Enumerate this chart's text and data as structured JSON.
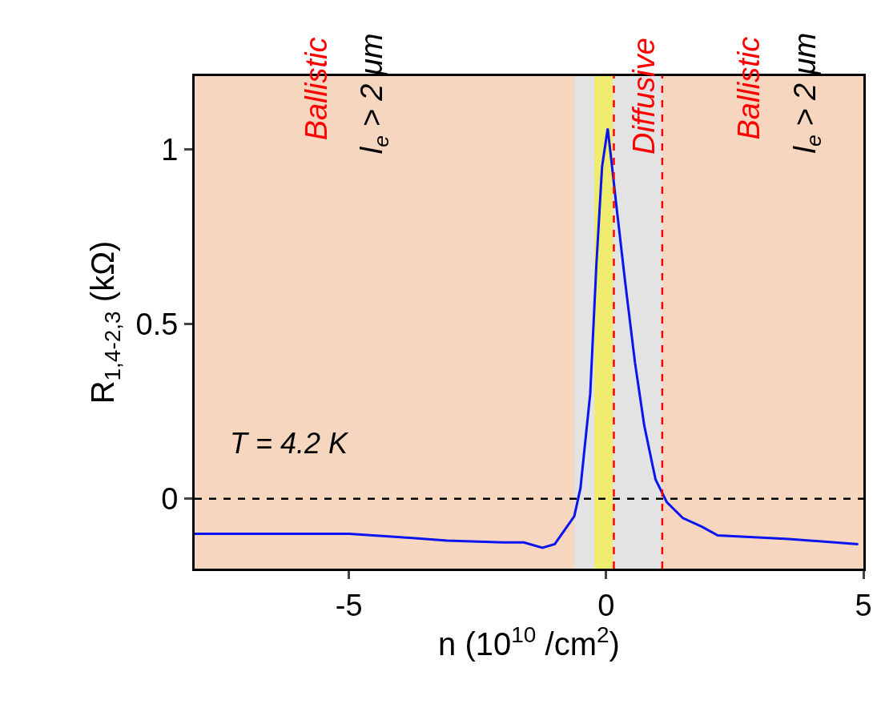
{
  "chart_data": {
    "type": "line",
    "xlabel": "n (10$^{10}$ /cm$^{2}$)",
    "ylabel": "R$_{1,4-2,3}$ (kΩ)",
    "xlim": [
      -8,
      5
    ],
    "ylim": [
      -0.2,
      1.21
    ],
    "xticks": [
      -5,
      0,
      5
    ],
    "yticks": [
      0,
      0.5,
      1
    ],
    "series": [
      {
        "color": "#0a14f0",
        "x": [
          -8,
          -6.5,
          -5,
          -4,
          -3.09,
          -2,
          -1.6,
          -1.24,
          -1.0,
          -0.62,
          -0.5,
          -0.31,
          -0.19,
          -0.08,
          0.03,
          0.1,
          0.19,
          0.37,
          0.56,
          0.74,
          0.96,
          1.18,
          1.49,
          1.86,
          2.17,
          3.55,
          4.9
        ],
        "values": [
          -0.1,
          -0.1,
          -0.1,
          -0.11,
          -0.12,
          -0.125,
          -0.125,
          -0.14,
          -0.13,
          -0.05,
          0.03,
          0.3,
          0.67,
          0.95,
          1.06,
          0.97,
          0.85,
          0.62,
          0.39,
          0.21,
          0.055,
          -0.01,
          -0.055,
          -0.08,
          -0.105,
          -0.115,
          -0.13
        ]
      }
    ],
    "bands": [
      {
        "axis": "x",
        "from": -8,
        "to": -0.62,
        "color": "#f6d6be"
      },
      {
        "axis": "x",
        "from": -0.62,
        "to": 1.09,
        "color": "#e3e3e3"
      },
      {
        "axis": "x",
        "from": -0.23,
        "to": 0.13,
        "color": "#f0ec70"
      },
      {
        "axis": "x",
        "from": 1.09,
        "to": 5,
        "color": "#f6d6be"
      }
    ],
    "ref_lines": [
      {
        "axis": "y",
        "value": 0,
        "color": "#000000",
        "line_style": "dashed"
      },
      {
        "axis": "x",
        "value": 0.15,
        "color": "#ff0000",
        "line_style": "dashed"
      },
      {
        "axis": "x",
        "value": 1.09,
        "color": "#ff0000",
        "line_style": "dashed"
      }
    ],
    "annotations": [
      "Ballistic",
      "l$_{e}$ > 2 μm",
      "Diffusive",
      "Ballistic",
      "l$_{e}$ > 2 μm",
      "T = 4.2 K"
    ]
  }
}
